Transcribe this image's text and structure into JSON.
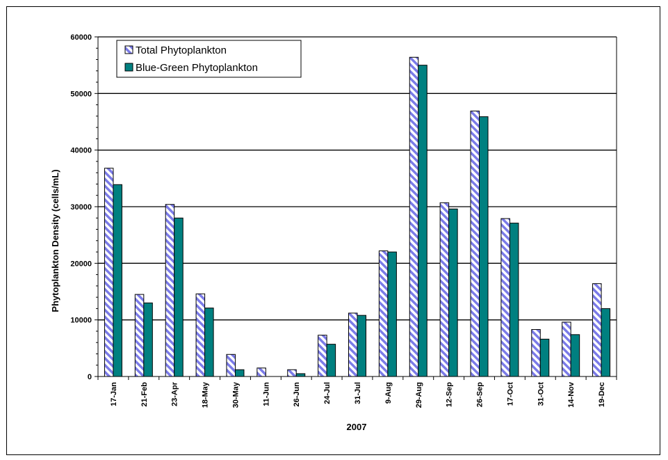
{
  "chart_data": {
    "type": "bar",
    "xlabel": "2007",
    "ylabel": "Phytoplankton Density (cells/mL)",
    "ylim": [
      0,
      60000
    ],
    "yticks": [
      0,
      10000,
      20000,
      30000,
      40000,
      50000,
      60000
    ],
    "ytick_labels": [
      "0",
      "10000",
      "20000",
      "30000",
      "40000",
      "50000",
      "60000"
    ],
    "grid": true,
    "legend_position": "top-left",
    "categories": [
      "17-Jan",
      "21-Feb",
      "23-Apr",
      "18-May",
      "30-May",
      "11-Jun",
      "26-Jun",
      "24-Jul",
      "31-Jul",
      "9-Aug",
      "29-Aug",
      "12-Sep",
      "26-Sep",
      "17-Oct",
      "31-Oct",
      "14-Nov",
      "19-Dec"
    ],
    "series": [
      {
        "name": "Total Phytoplankton",
        "color": "#7b7be8",
        "pattern": "diagonal-stripes",
        "values": [
          36800,
          14500,
          30400,
          14600,
          3900,
          1500,
          1200,
          7300,
          11200,
          22200,
          56400,
          30700,
          46900,
          27900,
          8300,
          9600,
          16400
        ]
      },
      {
        "name": "Blue-Green Phytoplankton",
        "color": "#008080",
        "values": [
          33900,
          13000,
          28000,
          12100,
          1200,
          0,
          500,
          5700,
          10800,
          22000,
          55000,
          29600,
          45900,
          27100,
          6600,
          7400,
          12000
        ]
      }
    ]
  }
}
